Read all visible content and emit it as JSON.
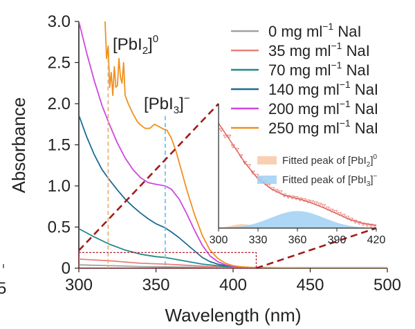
{
  "chart_data": {
    "type": "line",
    "xlabel": "Wavelength (nm)",
    "ylabel": "Absorbance",
    "xlim": [
      300,
      500
    ],
    "ylim": [
      0,
      3.0
    ],
    "x_ticks": [
      "300",
      "350",
      "400",
      "450",
      "500"
    ],
    "y_ticks": [
      "0",
      "0.5",
      "1.0",
      "1.5",
      "2.0",
      "2.5",
      "3.0"
    ],
    "left_edge_tick": "5",
    "annotations": [
      {
        "id": "pbi2",
        "base": "[PbI",
        "sub": "2",
        "close": "]",
        "sup": "0",
        "x": 319
      },
      {
        "id": "pbi3",
        "base": "[PbI",
        "sub": "3",
        "close": "]",
        "sup": "−",
        "x": 356
      }
    ],
    "series": [
      {
        "name_pre": "0 mg ml",
        "name_sup": "−1",
        "name_post": " NaI",
        "color": "#a0a0a0",
        "x": [
          300,
          320,
          340,
          360,
          380,
          400,
          420,
          450,
          500
        ],
        "y": [
          0.04,
          0.03,
          0.02,
          0.015,
          0.01,
          0.007,
          0.005,
          0.003,
          0.002
        ]
      },
      {
        "name_pre": "35 mg ml",
        "name_sup": "−1",
        "name_post": " NaI",
        "color": "#e8807a",
        "x": [
          300,
          320,
          340,
          356,
          370,
          385,
          400,
          420,
          450,
          500
        ],
        "y": [
          0.11,
          0.09,
          0.06,
          0.05,
          0.035,
          0.02,
          0.012,
          0.006,
          0.004,
          0.002
        ]
      },
      {
        "name_pre": "70 mg ml",
        "name_sup": "−1",
        "name_post": " NaI",
        "color": "#1f8a8a",
        "x": [
          300,
          310,
          320,
          330,
          340,
          350,
          356,
          365,
          380,
          395,
          410,
          430,
          500
        ],
        "y": [
          0.48,
          0.38,
          0.29,
          0.22,
          0.17,
          0.14,
          0.13,
          0.1,
          0.05,
          0.02,
          0.008,
          0.004,
          0.002
        ]
      },
      {
        "name_pre": "140 mg ml",
        "name_sup": "−1",
        "name_post": " NaI",
        "color": "#1b6a95",
        "x": [
          300,
          305,
          310,
          315,
          320,
          325,
          330,
          335,
          340,
          345,
          350,
          356,
          360,
          365,
          370,
          375,
          380,
          385,
          390,
          395,
          400,
          410,
          430,
          500
        ],
        "y": [
          1.86,
          1.6,
          1.38,
          1.2,
          1.07,
          0.95,
          0.84,
          0.75,
          0.67,
          0.6,
          0.54,
          0.49,
          0.44,
          0.37,
          0.29,
          0.21,
          0.13,
          0.08,
          0.05,
          0.03,
          0.02,
          0.01,
          0.005,
          0.003
        ]
      },
      {
        "name_pre": "200 mg ml",
        "name_sup": "−1",
        "name_post": " NaI",
        "color": "#cf45e0",
        "x": [
          300,
          305,
          310,
          315,
          320,
          325,
          330,
          335,
          340,
          345,
          350,
          356,
          360,
          365,
          370,
          375,
          380,
          385,
          390,
          395,
          400,
          405,
          410,
          420,
          440,
          500
        ],
        "y": [
          3.0,
          2.62,
          2.28,
          1.98,
          1.74,
          1.52,
          1.34,
          1.2,
          1.1,
          1.04,
          1.02,
          1.0,
          0.96,
          0.84,
          0.66,
          0.46,
          0.28,
          0.15,
          0.08,
          0.04,
          0.02,
          0.012,
          0.008,
          0.005,
          0.003,
          0.002
        ]
      },
      {
        "name_pre": "250 mg ml",
        "name_sup": "−1",
        "name_post": " NaI",
        "color": "#f0901e",
        "x": [
          317,
          318,
          319,
          320,
          321,
          322,
          323,
          324,
          325,
          326,
          327,
          328,
          329,
          330,
          332,
          335,
          338,
          340,
          343,
          346,
          349,
          352,
          355,
          357,
          360,
          363,
          366,
          370,
          375,
          380,
          385,
          390,
          395,
          400,
          405,
          410,
          415,
          420,
          430,
          450,
          500
        ],
        "y": [
          3.0,
          2.55,
          2.7,
          2.2,
          2.38,
          2.1,
          2.45,
          2.2,
          2.22,
          2.55,
          2.32,
          2.25,
          2.5,
          2.1,
          2.0,
          1.88,
          1.78,
          1.74,
          1.7,
          1.7,
          1.75,
          1.72,
          1.69,
          1.68,
          1.58,
          1.42,
          1.22,
          0.95,
          0.65,
          0.4,
          0.22,
          0.12,
          0.06,
          0.03,
          0.018,
          0.012,
          0.008,
          0.006,
          0.004,
          0.003,
          0.002
        ]
      }
    ],
    "highlight_box": {
      "x": [
        300,
        415
      ],
      "y": [
        0,
        0.19
      ]
    },
    "inset": {
      "type": "scatter+line",
      "xlim": [
        300,
        420
      ],
      "ylim": [
        0,
        0.19
      ],
      "x_ticks": [
        "300",
        "330",
        "360",
        "390",
        "420"
      ],
      "scatter": {
        "color": "#e8807a",
        "x": [
          302,
          305,
          308,
          311,
          314,
          317,
          320,
          323,
          326,
          329,
          332,
          335,
          338,
          341,
          344,
          347,
          350,
          353,
          356,
          359,
          362,
          365,
          368,
          371,
          374,
          377,
          380,
          383,
          386,
          389,
          392,
          395,
          398,
          401,
          404,
          407,
          410,
          413,
          416,
          419
        ],
        "y": [
          0.15,
          0.14,
          0.14,
          0.125,
          0.12,
          0.11,
          0.1,
          0.095,
          0.085,
          0.08,
          0.075,
          0.07,
          0.065,
          0.06,
          0.057,
          0.055,
          0.05,
          0.048,
          0.047,
          0.046,
          0.044,
          0.043,
          0.041,
          0.04,
          0.038,
          0.036,
          0.034,
          0.03,
          0.027,
          0.025,
          0.022,
          0.019,
          0.016,
          0.013,
          0.01,
          0.008,
          0.006,
          0.005,
          0.004,
          0.003
        ]
      },
      "fit": {
        "color": "#e06a64",
        "x": [
          300,
          310,
          320,
          330,
          340,
          350,
          356,
          362,
          370,
          380,
          390,
          400,
          410,
          420
        ],
        "y": [
          0.16,
          0.13,
          0.1,
          0.075,
          0.06,
          0.05,
          0.047,
          0.044,
          0.039,
          0.031,
          0.022,
          0.013,
          0.007,
          0.004
        ]
      },
      "peaks": [
        {
          "label_base": "Fitted peak of [PbI",
          "label_sub": "2",
          "label_close": "]",
          "label_sup": "0",
          "color": "#f7c8a3",
          "center": 318,
          "width": 8,
          "height": 0.006
        },
        {
          "label_base": "Fitted peak of [PbI",
          "label_sub": "3",
          "label_close": "]",
          "label_sup": "−",
          "color": "#9fd0f2",
          "center": 360,
          "width": 20,
          "height": 0.026
        }
      ]
    }
  }
}
